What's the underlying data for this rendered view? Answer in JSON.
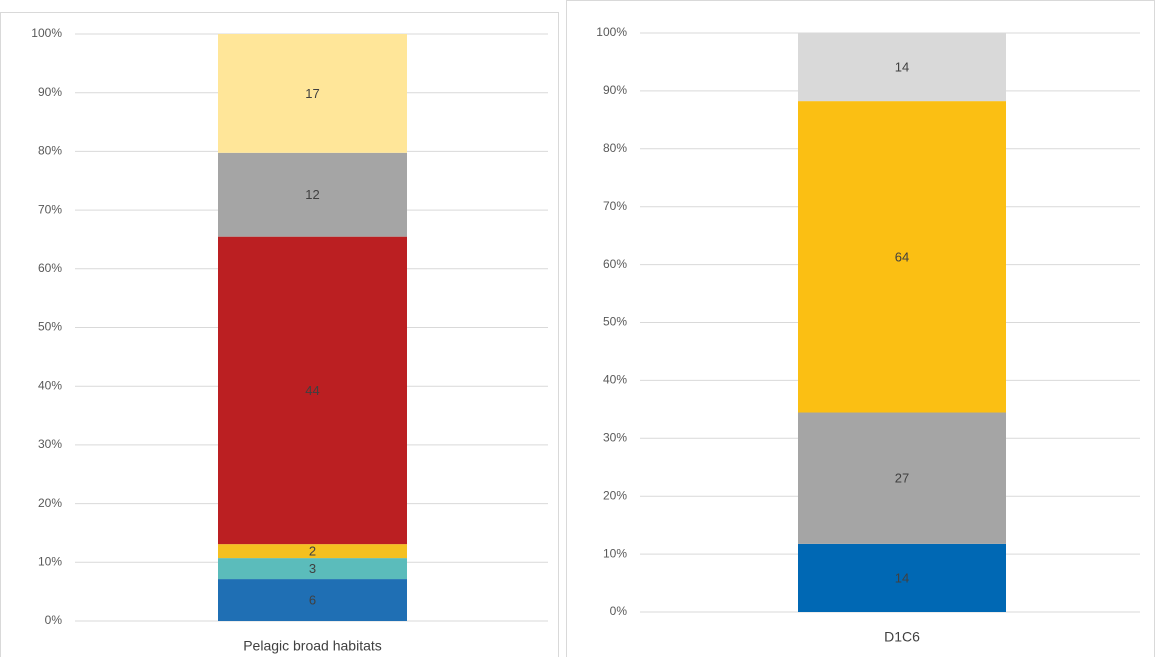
{
  "chart_data": [
    {
      "type": "bar",
      "stacking": "percent",
      "categories": [
        "Pelagic broad habitats"
      ],
      "series": [
        {
          "color": "#1f6fb4",
          "values": [
            6
          ]
        },
        {
          "color": "#5bbcbb",
          "values": [
            3
          ]
        },
        {
          "color": "#f5c020",
          "values": [
            2
          ]
        },
        {
          "color": "#bb1f22",
          "values": [
            44
          ]
        },
        {
          "color": "#a5a5a5",
          "values": [
            12
          ]
        },
        {
          "color": "#ffe699",
          "values": [
            17
          ]
        }
      ],
      "ylim": [
        0,
        100
      ],
      "yticks": [
        {
          "value": 0,
          "label": "0%"
        },
        {
          "value": 10,
          "label": "10%"
        },
        {
          "value": 20,
          "label": "20%"
        },
        {
          "value": 30,
          "label": "30%"
        },
        {
          "value": 40,
          "label": "40%"
        },
        {
          "value": 50,
          "label": "50%"
        },
        {
          "value": 60,
          "label": "60%"
        },
        {
          "value": 70,
          "label": "70%"
        },
        {
          "value": 80,
          "label": "80%"
        },
        {
          "value": 90,
          "label": "90%"
        },
        {
          "value": 100,
          "label": "100%"
        }
      ],
      "grid": true
    },
    {
      "type": "bar",
      "stacking": "percent",
      "categories": [
        "D1C6"
      ],
      "series": [
        {
          "color": "#0068b4",
          "values": [
            14
          ]
        },
        {
          "color": "#a5a5a5",
          "values": [
            27
          ]
        },
        {
          "color": "#fbbf13",
          "values": [
            64
          ]
        },
        {
          "color": "#d9d9d9",
          "values": [
            14
          ]
        }
      ],
      "ylim": [
        0,
        100
      ],
      "yticks": [
        {
          "value": 0,
          "label": "0%"
        },
        {
          "value": 10,
          "label": "10%"
        },
        {
          "value": 20,
          "label": "20%"
        },
        {
          "value": 30,
          "label": "30%"
        },
        {
          "value": 40,
          "label": "40%"
        },
        {
          "value": 50,
          "label": "50%"
        },
        {
          "value": 60,
          "label": "60%"
        },
        {
          "value": 70,
          "label": "70%"
        },
        {
          "value": 80,
          "label": "80%"
        },
        {
          "value": 90,
          "label": "90%"
        },
        {
          "value": 100,
          "label": "100%"
        }
      ],
      "grid": true
    }
  ]
}
